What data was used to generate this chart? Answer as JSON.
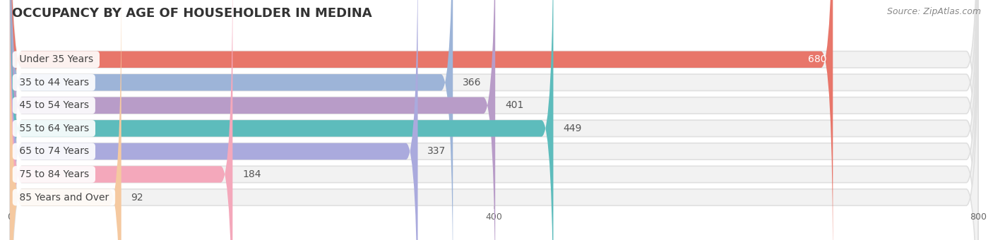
{
  "title": "OCCUPANCY BY AGE OF HOUSEHOLDER IN MEDINA",
  "source": "Source: ZipAtlas.com",
  "categories": [
    "Under 35 Years",
    "35 to 44 Years",
    "45 to 54 Years",
    "55 to 64 Years",
    "65 to 74 Years",
    "75 to 84 Years",
    "85 Years and Over"
  ],
  "values": [
    680,
    366,
    401,
    449,
    337,
    184,
    92
  ],
  "bar_colors": [
    "#e8766a",
    "#9db4d8",
    "#b89cc8",
    "#5dbcbc",
    "#aaaadd",
    "#f4a8bb",
    "#f5c9a0"
  ],
  "xlim_data": [
    0,
    800
  ],
  "xticks": [
    0,
    400,
    800
  ],
  "background_color": "#ffffff",
  "bar_bg_color": "#f0f0f0",
  "title_fontsize": 13,
  "label_fontsize": 10,
  "value_fontsize": 10,
  "source_fontsize": 9
}
